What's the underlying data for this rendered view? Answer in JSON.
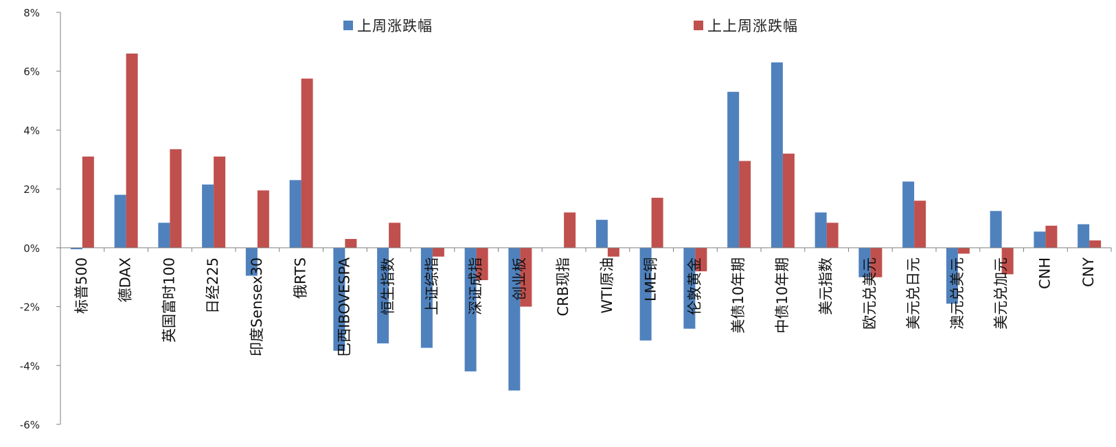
{
  "chart_data": {
    "type": "bar",
    "categories": [
      "标普500",
      "德DAX",
      "英国富时100",
      "日经225",
      "印度Sensex30",
      "俄RTS",
      "巴西IBOVESPA",
      "恒生指数",
      "上证综指",
      "深证成指",
      "创业板",
      "CRB现指",
      "WTI原油",
      "LME铜",
      "伦敦黄金",
      "美债10年期",
      "中债10年期",
      "美元指数",
      "欧元兑美元",
      "美元兑日元",
      "澳元兑美元",
      "美元兑加元",
      "CNH",
      "CNY"
    ],
    "series": [
      {
        "name": "上周涨跌幅",
        "color": "#4F81BD",
        "values": [
          -0.05,
          1.8,
          0.85,
          2.15,
          -0.95,
          2.3,
          -3.5,
          -3.25,
          -3.4,
          -4.2,
          -4.85,
          0.0,
          0.95,
          -3.15,
          -2.75,
          5.3,
          6.3,
          1.2,
          -1.0,
          2.25,
          -1.9,
          1.25,
          0.55,
          0.8
        ]
      },
      {
        "name": "上上周涨跌幅",
        "color": "#C0504D",
        "values": [
          3.1,
          6.6,
          3.35,
          3.1,
          1.95,
          5.75,
          0.3,
          0.85,
          -0.3,
          -1.1,
          -2.0,
          1.2,
          -0.3,
          1.7,
          -0.8,
          2.95,
          3.2,
          0.85,
          -1.0,
          1.6,
          -0.2,
          -0.9,
          0.75,
          0.25
        ]
      }
    ],
    "ylim": [
      -6,
      8
    ],
    "yticks": [
      8,
      6,
      4,
      2,
      0,
      -2,
      -4,
      -6
    ],
    "ytick_labels": [
      "8%",
      "6%",
      "4%",
      "2%",
      "0%",
      "-2%",
      "-4%",
      "-6%"
    ],
    "xlabel": "",
    "ylabel": "",
    "grid": false,
    "legend_position": "top"
  }
}
